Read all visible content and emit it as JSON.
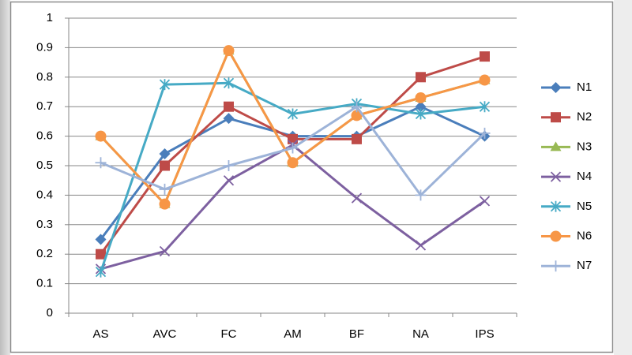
{
  "chart_data": {
    "type": "line",
    "categories": [
      "AS",
      "AVC",
      "FC",
      "AM",
      "BF",
      "NA",
      "IPS"
    ],
    "series": [
      {
        "name": "N1",
        "color": "#4a7ebb",
        "marker": "diamond",
        "values": [
          0.25,
          0.54,
          0.66,
          0.6,
          0.6,
          0.7,
          0.6
        ]
      },
      {
        "name": "N2",
        "color": "#be4b48",
        "marker": "square",
        "values": [
          0.2,
          0.5,
          0.7,
          0.59,
          0.59,
          0.8,
          0.87
        ]
      },
      {
        "name": "N3",
        "color": "#98b954",
        "marker": "triangle",
        "values": [
          0.6,
          0.37,
          0.89,
          0.51,
          0.67,
          0.73,
          0.79
        ]
      },
      {
        "name": "N4",
        "color": "#7d60a0",
        "marker": "x",
        "values": [
          0.15,
          0.21,
          0.45,
          0.57,
          0.39,
          0.23,
          0.38
        ]
      },
      {
        "name": "N5",
        "color": "#46aac5",
        "marker": "asterisk",
        "values": [
          0.14,
          0.775,
          0.78,
          0.675,
          0.71,
          0.675,
          0.7
        ]
      },
      {
        "name": "N6",
        "color": "#f79646",
        "marker": "circle",
        "values": [
          0.6,
          0.37,
          0.89,
          0.51,
          0.67,
          0.73,
          0.79
        ]
      },
      {
        "name": "N7",
        "color": "#9db3d8",
        "marker": "plus",
        "values": [
          0.51,
          0.42,
          0.5,
          0.56,
          0.7,
          0.4,
          0.61
        ]
      }
    ],
    "ylim": [
      0,
      1
    ],
    "yticks": [
      0,
      0.1,
      0.2,
      0.3,
      0.4,
      0.5,
      0.6,
      0.7,
      0.8,
      0.9,
      1
    ],
    "grid": true,
    "legend": "right"
  }
}
